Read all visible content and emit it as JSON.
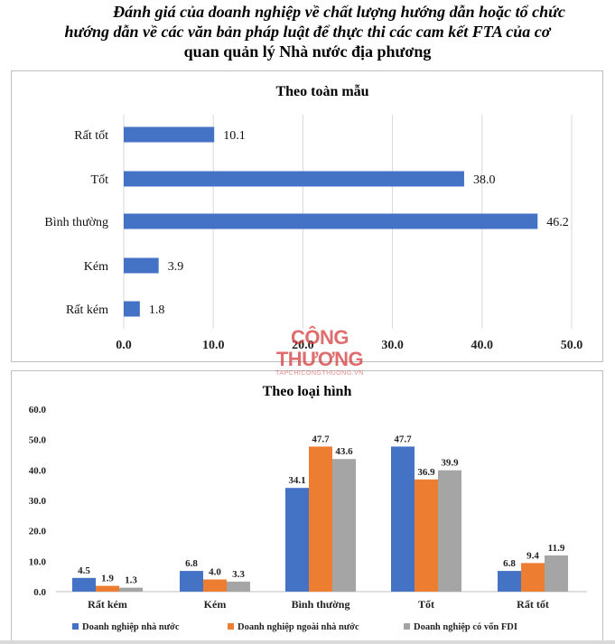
{
  "title": {
    "line1": "Đánh giá của doanh nghiệp về chất lượng hướng dẫn hoặc tổ chức",
    "line2": "hướng dẫn về các văn bản pháp luật để thực thi các cam kết FTA của cơ",
    "line3": "quan quản lý Nhà nước địa phương"
  },
  "watermark": {
    "main": "CÔNG THƯƠNG",
    "sub": "TAPCHICONGTHUONG.VN"
  },
  "colors": {
    "bar_blue": "#4472c4",
    "bar_orange": "#ed7d31",
    "bar_gray": "#a5a5a5"
  },
  "chart_data": [
    {
      "type": "bar",
      "orientation": "horizontal",
      "title": "Theo toàn mẫu",
      "categories": [
        "Rất tốt",
        "Tốt",
        "Bình thường",
        "Kém",
        "Rất kém"
      ],
      "values": [
        10.1,
        38.0,
        46.2,
        3.9,
        1.8
      ],
      "value_labels": [
        "10.1",
        "38.0",
        "46.2",
        "3.9",
        "1.8"
      ],
      "xlim": [
        0,
        50
      ],
      "x_ticks": [
        "0.0",
        "10.0",
        "20.0",
        "30.0",
        "40.0",
        "50.0"
      ],
      "grid": true
    },
    {
      "type": "bar",
      "orientation": "vertical",
      "title": "Theo loại hình",
      "categories": [
        "Rất kém",
        "Kém",
        "Bình thường",
        "Tốt",
        "Rất tốt"
      ],
      "series": [
        {
          "name": "Doanh nghiệp nhà nước",
          "values": [
            4.5,
            6.8,
            34.1,
            47.7,
            6.8
          ],
          "labels": [
            "4.5",
            "6.8",
            "34.1",
            "47.7",
            "6.8"
          ]
        },
        {
          "name": "Doanh nghiệp ngoài nhà nước",
          "values": [
            1.9,
            4.0,
            47.7,
            36.9,
            9.4
          ],
          "labels": [
            "1.9",
            "4.0",
            "47.7",
            "36.9",
            "9.4"
          ]
        },
        {
          "name": "Doanh nghiệp có vốn FDI",
          "values": [
            1.3,
            3.3,
            43.6,
            39.9,
            11.9
          ],
          "labels": [
            "1.3",
            "3.3",
            "43.6",
            "39.9",
            "11.9"
          ]
        }
      ],
      "ylim": [
        0,
        60
      ],
      "y_ticks": [
        "0.0",
        "10.0",
        "20.0",
        "30.0",
        "40.0",
        "50.0",
        "60.0"
      ],
      "legend": "bottom",
      "grid": false
    }
  ]
}
